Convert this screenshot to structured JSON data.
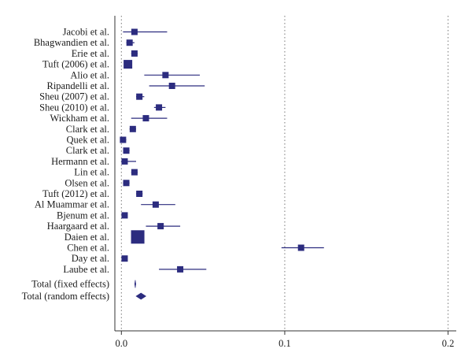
{
  "chart_data": {
    "type": "forest",
    "x_ticks": [
      0.0,
      0.1,
      0.2
    ],
    "x_tick_labels": [
      "0.0",
      "0.1",
      "0.2"
    ],
    "xlim": [
      -0.004,
      0.205
    ],
    "grid": "vertical dotted at 0.1 and 0.2",
    "studies": [
      {
        "label": "Jacobi et al.",
        "estimate": 0.008,
        "ci_low": 0.001,
        "ci_high": 0.028,
        "weight": "small"
      },
      {
        "label": "Bhagwandien et al.",
        "estimate": 0.005,
        "ci_low": 0.003,
        "ci_high": 0.008,
        "weight": "small"
      },
      {
        "label": "Erie et al.",
        "estimate": 0.008,
        "ci_low": 0.006,
        "ci_high": 0.01,
        "weight": "small"
      },
      {
        "label": "Tuft (2006) et al.",
        "estimate": 0.004,
        "ci_low": 0.002,
        "ci_high": 0.006,
        "weight": "medium"
      },
      {
        "label": "Alio et al.",
        "estimate": 0.027,
        "ci_low": 0.014,
        "ci_high": 0.048,
        "weight": "small"
      },
      {
        "label": "Ripandelli et al.",
        "estimate": 0.031,
        "ci_low": 0.017,
        "ci_high": 0.051,
        "weight": "small"
      },
      {
        "label": "Sheu (2007) et al.",
        "estimate": 0.011,
        "ci_low": 0.009,
        "ci_high": 0.014,
        "weight": "small"
      },
      {
        "label": "Sheu (2010) et al.",
        "estimate": 0.023,
        "ci_low": 0.02,
        "ci_high": 0.027,
        "weight": "small"
      },
      {
        "label": "Wickham et al.",
        "estimate": 0.015,
        "ci_low": 0.006,
        "ci_high": 0.028,
        "weight": "small"
      },
      {
        "label": "Clark et al.",
        "estimate": 0.007,
        "ci_low": 0.005,
        "ci_high": 0.009,
        "weight": "small"
      },
      {
        "label": "Quek et al.",
        "estimate": 0.001,
        "ci_low": 0.0,
        "ci_high": 0.003,
        "weight": "small"
      },
      {
        "label": "Clark et al.",
        "estimate": 0.003,
        "ci_low": 0.002,
        "ci_high": 0.005,
        "weight": "small"
      },
      {
        "label": "Hermann et al.",
        "estimate": 0.002,
        "ci_low": 0.0,
        "ci_high": 0.009,
        "weight": "small"
      },
      {
        "label": "Lin et al.",
        "estimate": 0.008,
        "ci_low": 0.006,
        "ci_high": 0.01,
        "weight": "small"
      },
      {
        "label": "Olsen et al.",
        "estimate": 0.003,
        "ci_low": 0.001,
        "ci_high": 0.005,
        "weight": "small"
      },
      {
        "label": "Tuft (2012) et al.",
        "estimate": 0.011,
        "ci_low": 0.009,
        "ci_high": 0.013,
        "weight": "small"
      },
      {
        "label": "Al Muammar et al.",
        "estimate": 0.021,
        "ci_low": 0.012,
        "ci_high": 0.033,
        "weight": "small"
      },
      {
        "label": "Bjenum et al.",
        "estimate": 0.002,
        "ci_low": 0.001,
        "ci_high": 0.003,
        "weight": "small"
      },
      {
        "label": "Haargaard et al.",
        "estimate": 0.024,
        "ci_low": 0.015,
        "ci_high": 0.036,
        "weight": "small"
      },
      {
        "label": "Daien et al.",
        "estimate": 0.01,
        "ci_low": 0.009,
        "ci_high": 0.011,
        "weight": "large"
      },
      {
        "label": "Chen et al.",
        "estimate": 0.11,
        "ci_low": 0.098,
        "ci_high": 0.124,
        "weight": "small"
      },
      {
        "label": "Day et al.",
        "estimate": 0.002,
        "ci_low": 0.001,
        "ci_high": 0.003,
        "weight": "small"
      },
      {
        "label": "Laube et al.",
        "estimate": 0.036,
        "ci_low": 0.023,
        "ci_high": 0.052,
        "weight": "small"
      }
    ],
    "totals": [
      {
        "label": "Total (fixed effects)",
        "estimate": 0.0085,
        "ci_low": 0.0083,
        "ci_high": 0.0088
      },
      {
        "label": "Total (random effects)",
        "estimate": 0.012,
        "ci_low": 0.009,
        "ci_high": 0.015
      }
    ]
  },
  "colors": {
    "marker": "#2c2c7f",
    "axis": "#333333",
    "grid": "#777777",
    "text": "#1a1a1a"
  }
}
